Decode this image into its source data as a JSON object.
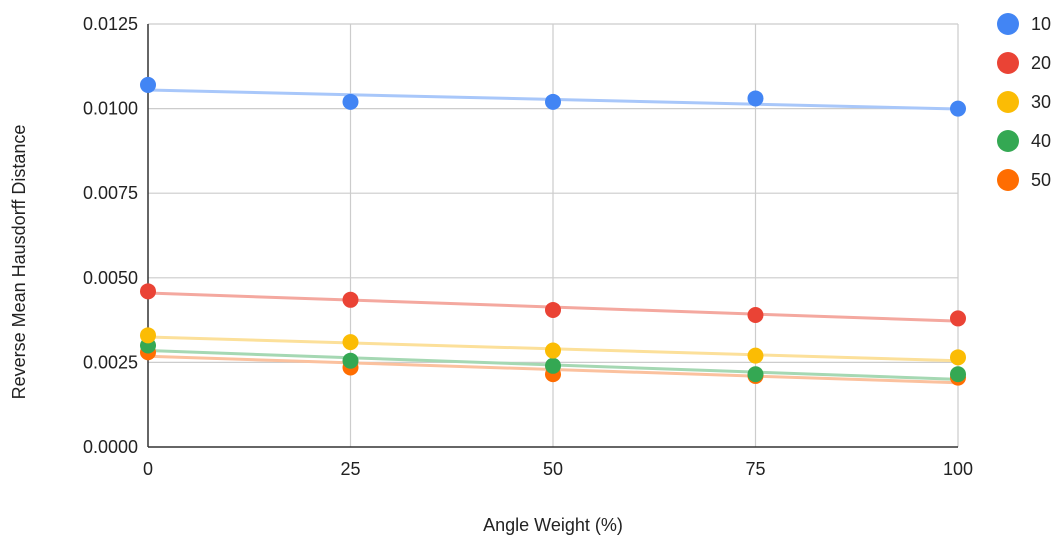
{
  "chart_data": {
    "type": "scatter",
    "title": "",
    "xlabel": "Angle Weight (%)",
    "ylabel": "Reverse Mean Hausdorff Distance",
    "xlim": [
      0,
      100
    ],
    "ylim": [
      0,
      0.0125
    ],
    "x_ticks": [
      0,
      25,
      50,
      75,
      100
    ],
    "x_tick_labels": [
      "0",
      "25",
      "50",
      "75",
      "100"
    ],
    "y_ticks": [
      0,
      0.0025,
      0.005,
      0.0075,
      0.01,
      0.0125
    ],
    "y_tick_labels": [
      "0.0000",
      "0.0025",
      "0.0050",
      "0.0075",
      "0.0100",
      "0.0125"
    ],
    "grid": true,
    "legend_position": "right",
    "trendlines": true,
    "x": [
      0,
      25,
      50,
      75,
      100
    ],
    "series": [
      {
        "name": "10",
        "color": "#4285F4",
        "trend_color": "#A8C7FA",
        "values": [
          0.0107,
          0.0102,
          0.0102,
          0.0103,
          0.01
        ],
        "trend": [
          0.01055,
          0.00999
        ]
      },
      {
        "name": "20",
        "color": "#EA4335",
        "trend_color": "#F4A89F",
        "values": [
          0.0046,
          0.00435,
          0.00405,
          0.0039,
          0.0038
        ],
        "trend": [
          0.00455,
          0.00372
        ]
      },
      {
        "name": "30",
        "color": "#FBBC04",
        "trend_color": "#FCE09A",
        "values": [
          0.0033,
          0.0031,
          0.00285,
          0.0027,
          0.00265
        ],
        "trend": [
          0.00325,
          0.00255
        ]
      },
      {
        "name": "40",
        "color": "#34A853",
        "trend_color": "#A5D8B3",
        "values": [
          0.003,
          0.00255,
          0.0024,
          0.00215,
          0.00215
        ],
        "trend": [
          0.00285,
          0.002
        ]
      },
      {
        "name": "50",
        "color": "#FF6D01",
        "trend_color": "#FBC19E",
        "values": [
          0.0028,
          0.00235,
          0.00215,
          0.0021,
          0.00205
        ],
        "trend": [
          0.00268,
          0.0019
        ]
      }
    ]
  }
}
